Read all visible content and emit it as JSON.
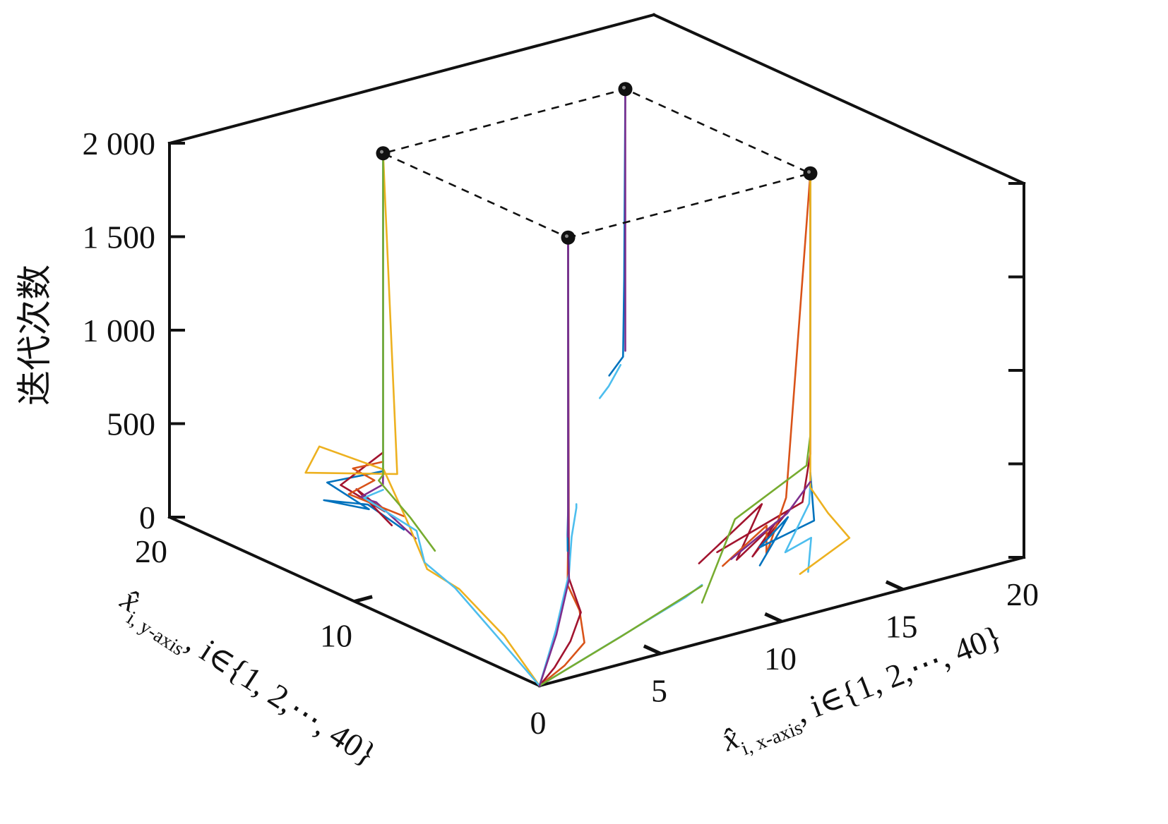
{
  "chart_data": {
    "type": "line",
    "projection": "3d",
    "grid": false,
    "box": true,
    "zlabel": "迭代次数",
    "xlabel": {
      "symbol": "x̂",
      "sub": "i, x-axis",
      "rest": ", i∈{1, 2,⋯, 40}"
    },
    "ylabel": {
      "symbol": "x̂",
      "sub": "i, y-axis",
      "rest": ", i∈{1, 2,⋯, 40}"
    },
    "xlim": [
      0,
      20
    ],
    "ylim": [
      0,
      20
    ],
    "zlim": [
      0,
      2000
    ],
    "x_ticks": [
      "0",
      "5",
      "10",
      "15",
      "20"
    ],
    "y_ticks": [
      "10",
      "20"
    ],
    "z_ticks": [
      "0",
      "500",
      "1 000",
      "1 500",
      "2 000"
    ],
    "colors": [
      "#0072BD",
      "#D95319",
      "#EDB120",
      "#7E2F8E",
      "#77AC30",
      "#4DBEEE",
      "#A2142F"
    ],
    "targets": [
      {
        "x": 5,
        "y": 5,
        "z": 2000
      },
      {
        "x": 15,
        "y": 5,
        "z": 2000
      },
      {
        "x": 15,
        "y": 15,
        "z": 2000
      },
      {
        "x": 5,
        "y": 15,
        "z": 2000
      }
    ],
    "target_outline": "dashed",
    "series": [
      {
        "color": "#D95319",
        "points": [
          [
            0,
            0,
            0
          ],
          [
            1.5,
            0.6,
            30
          ],
          [
            3,
            1.5,
            60
          ],
          [
            4.4,
            3.6,
            90
          ],
          [
            4.9,
            4.9,
            150
          ],
          [
            5,
            5,
            400
          ],
          [
            5,
            5,
            2000
          ]
        ]
      },
      {
        "color": "#A2142F",
        "points": [
          [
            0,
            0,
            0
          ],
          [
            1,
            0.5,
            40
          ],
          [
            2.5,
            1.6,
            80
          ],
          [
            4,
            3,
            120
          ],
          [
            4.8,
            4.7,
            200
          ],
          [
            5,
            5,
            2000
          ]
        ]
      },
      {
        "color": "#EDB120",
        "points": [
          [
            0,
            0,
            0
          ],
          [
            1.6,
            4,
            30
          ],
          [
            2.8,
            8,
            60
          ],
          [
            3,
            10,
            70
          ]
        ]
      },
      {
        "color": "#4DBEEE",
        "points": [
          [
            0,
            0,
            0
          ],
          [
            1.4,
            4.2,
            35
          ],
          [
            2.7,
            8.1,
            65
          ],
          [
            3.2,
            10.4,
            80
          ]
        ]
      },
      {
        "color": "#4DBEEE",
        "points": [
          [
            0,
            0,
            0
          ],
          [
            4,
            1.3,
            40
          ],
          [
            8,
            2.6,
            80
          ],
          [
            9,
            3,
            95
          ]
        ]
      },
      {
        "color": "#77AC30",
        "points": [
          [
            0,
            0,
            0
          ],
          [
            4.5,
            1.5,
            40
          ],
          [
            9,
            3,
            90
          ]
        ]
      },
      {
        "color": "#4DBEEE",
        "points": [
          [
            0,
            0,
            0
          ],
          [
            2.5,
            2.4,
            100
          ],
          [
            4.5,
            4.3,
            250
          ],
          [
            5.3,
            5.2,
            380
          ],
          [
            5.8,
            5.6,
            500
          ],
          [
            5.8,
            5.6,
            520
          ]
        ]
      },
      {
        "color": "#7E2F8E",
        "points": [
          [
            0,
            0,
            0
          ],
          [
            2.3,
            2.1,
            100
          ],
          [
            4.2,
            3.9,
            250
          ],
          [
            4.7,
            4.6,
            350
          ]
        ]
      },
      {
        "color": "#0072BD",
        "points": [
          [
            4.6,
            4.5,
            360
          ],
          [
            4.9,
            4.9,
            420
          ],
          [
            5,
            5,
            550
          ],
          [
            5,
            5,
            2000
          ]
        ]
      },
      {
        "color": "#7E2F8E",
        "points": [
          [
            5,
            5,
            400
          ],
          [
            5,
            5,
            2000
          ]
        ]
      },
      {
        "color": "#A2142F",
        "points": [
          [
            10.1,
            4.6,
            100
          ],
          [
            13,
            5,
            300
          ],
          [
            11.5,
            4.4,
            80
          ],
          [
            13.8,
            5.3,
            160
          ],
          [
            12,
            4.2,
            90
          ],
          [
            14.4,
            5.4,
            200
          ],
          [
            11,
            4.8,
            120
          ],
          [
            14.6,
            4.9,
            260
          ],
          [
            15,
            5,
            500
          ],
          [
            15,
            5,
            2000
          ]
        ]
      },
      {
        "color": "#D95319",
        "points": [
          [
            11,
            4.5,
            60
          ],
          [
            13.5,
            5.4,
            150
          ],
          [
            12.5,
            4.1,
            90
          ],
          [
            14,
            5,
            300
          ],
          [
            15,
            5,
            2000
          ]
        ]
      },
      {
        "color": "#0072BD",
        "points": [
          [
            12,
            3.8,
            60
          ],
          [
            14,
            4.9,
            200
          ],
          [
            12.6,
            4.6,
            100
          ],
          [
            14.7,
            4.4,
            180
          ],
          [
            15,
            5,
            400
          ]
        ]
      },
      {
        "color": "#4DBEEE",
        "points": [
          [
            13,
            2.5,
            50
          ],
          [
            14.5,
            4.3,
            100
          ],
          [
            13.2,
            4,
            80
          ],
          [
            14.8,
            4.8,
            250
          ],
          [
            15,
            5,
            350
          ]
        ]
      },
      {
        "color": "#77AC30",
        "points": [
          [
            9,
            3,
            0
          ],
          [
            12.5,
            5.8,
            200
          ],
          [
            15.3,
            5.6,
            400
          ],
          [
            15,
            5,
            600
          ],
          [
            15,
            5,
            2000
          ]
        ]
      },
      {
        "color": "#EDB120",
        "points": [
          [
            13.2,
            3.2,
            0
          ],
          [
            15.7,
            3.8,
            80
          ],
          [
            15.5,
            4.7,
            180
          ],
          [
            15,
            5,
            320
          ],
          [
            15,
            5,
            2000
          ]
        ]
      },
      {
        "color": "#7E2F8E",
        "points": [
          [
            11.5,
            4.7,
            70
          ],
          [
            14.2,
            5.2,
            200
          ],
          [
            15,
            5,
            350
          ]
        ]
      },
      {
        "color": "#0072BD",
        "points": [
          [
            5.4,
            14.4,
            0
          ],
          [
            5.9,
            17,
            0
          ],
          [
            5,
            18.2,
            0
          ],
          [
            4.8,
            15.5,
            80
          ],
          [
            4.6,
            17.5,
            140
          ],
          [
            5,
            15,
            300
          ],
          [
            5,
            15,
            2000
          ]
        ]
      },
      {
        "color": "#A2142F",
        "points": [
          [
            4.9,
            14.4,
            40
          ],
          [
            5.2,
            16.7,
            120
          ],
          [
            5.3,
            15.3,
            60
          ],
          [
            4.7,
            16.9,
            150
          ],
          [
            5,
            15,
            400
          ]
        ]
      },
      {
        "color": "#7E2F8E",
        "points": [
          [
            5.2,
            13.5,
            0
          ],
          [
            5.4,
            15.9,
            80
          ],
          [
            4.8,
            16,
            120
          ],
          [
            5.3,
            15.4,
            200
          ],
          [
            5,
            15,
            300
          ]
        ]
      },
      {
        "color": "#D95319",
        "points": [
          [
            5.1,
            14,
            100
          ],
          [
            4.5,
            16.2,
            140
          ],
          [
            5.1,
            15.6,
            220
          ],
          [
            4.9,
            16.5,
            250
          ],
          [
            5,
            15,
            350
          ]
        ]
      },
      {
        "color": "#EDB120",
        "points": [
          [
            3,
            10,
            70
          ],
          [
            4.3,
            12.8,
            160
          ],
          [
            5.1,
            15.1,
            300
          ],
          [
            5.5,
            19.1,
            230
          ],
          [
            4.7,
            18.8,
            130
          ],
          [
            5.2,
            14.5,
            300
          ],
          [
            5,
            15,
            2000
          ]
        ]
      },
      {
        "color": "#4DBEEE",
        "points": [
          [
            3.2,
            10.4,
            80
          ],
          [
            4.7,
            12.8,
            90
          ],
          [
            4.9,
            15.9,
            120
          ],
          [
            5,
            15,
            200
          ]
        ]
      },
      {
        "color": "#77AC30",
        "points": [
          [
            5,
            12.2,
            0
          ],
          [
            5.2,
            13.8,
            100
          ],
          [
            5.2,
            15.5,
            220
          ],
          [
            5,
            15,
            280
          ],
          [
            5,
            15,
            2000
          ]
        ]
      },
      {
        "color": "#0072BD",
        "points": [
          [
            13.8,
            14.3,
            540
          ],
          [
            14.6,
            14.6,
            600
          ],
          [
            14.8,
            14.8,
            1000
          ],
          [
            15,
            15,
            2000
          ]
        ]
      },
      {
        "color": "#4DBEEE",
        "points": [
          [
            12.8,
            13.5,
            490
          ],
          [
            13.4,
            13.8,
            520
          ],
          [
            14.5,
            14.6,
            560
          ]
        ]
      },
      {
        "color": "#7E2F8E",
        "points": [
          [
            15,
            15,
            600
          ],
          [
            15,
            15,
            2000
          ]
        ]
      }
    ]
  }
}
